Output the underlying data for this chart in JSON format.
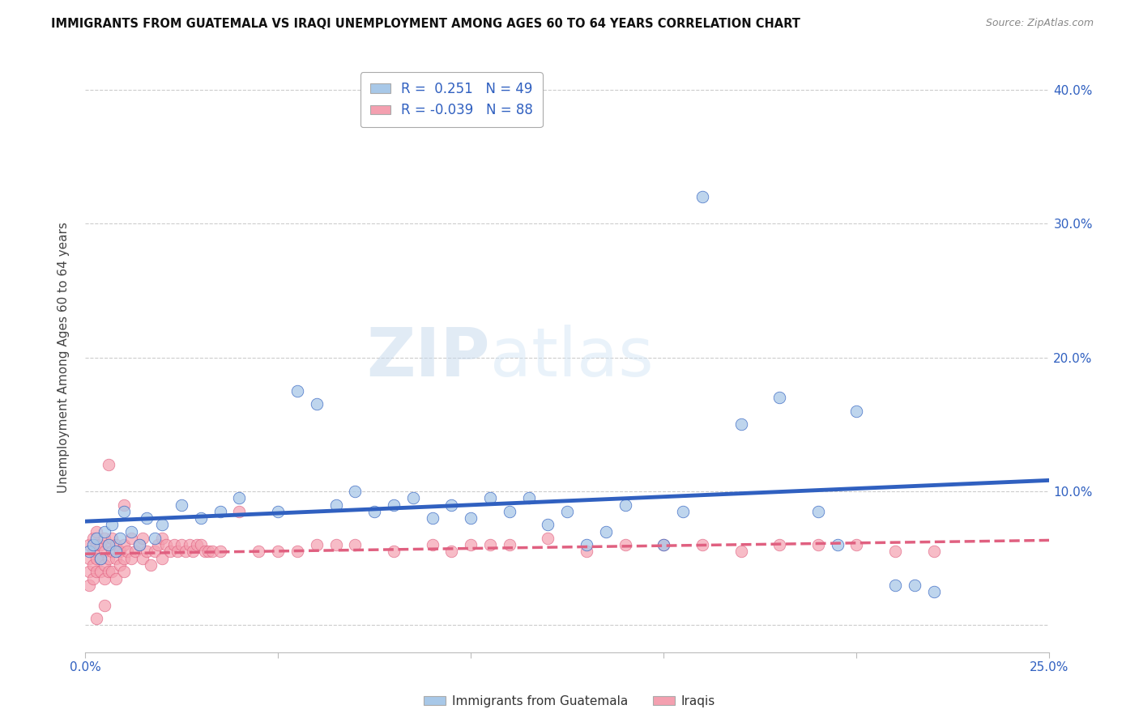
{
  "title": "IMMIGRANTS FROM GUATEMALA VS IRAQI UNEMPLOYMENT AMONG AGES 60 TO 64 YEARS CORRELATION CHART",
  "source": "Source: ZipAtlas.com",
  "ylabel": "Unemployment Among Ages 60 to 64 years",
  "xlim": [
    0.0,
    0.25
  ],
  "ylim": [
    -0.02,
    0.42
  ],
  "x_tick_pos": [
    0.0,
    0.05,
    0.1,
    0.15,
    0.2,
    0.25
  ],
  "x_tick_labels": [
    "0.0%",
    "",
    "",
    "",
    "",
    "25.0%"
  ],
  "y_tick_pos": [
    0.0,
    0.1,
    0.2,
    0.3,
    0.4
  ],
  "y_tick_labels": [
    "",
    "10.0%",
    "20.0%",
    "30.0%",
    "40.0%"
  ],
  "color_blue": "#a8c8e8",
  "color_pink": "#f4a0b0",
  "line_blue": "#3060c0",
  "line_pink": "#e06080",
  "watermark": "ZIPatlas",
  "blue_r": 0.251,
  "blue_n": 49,
  "pink_r": -0.039,
  "pink_n": 88,
  "blue_x": [
    0.001,
    0.002,
    0.003,
    0.004,
    0.005,
    0.006,
    0.007,
    0.008,
    0.009,
    0.01,
    0.012,
    0.014,
    0.016,
    0.018,
    0.02,
    0.025,
    0.03,
    0.035,
    0.04,
    0.05,
    0.055,
    0.06,
    0.065,
    0.07,
    0.075,
    0.08,
    0.085,
    0.09,
    0.095,
    0.1,
    0.105,
    0.11,
    0.115,
    0.12,
    0.125,
    0.13,
    0.135,
    0.14,
    0.15,
    0.155,
    0.16,
    0.17,
    0.18,
    0.19,
    0.195,
    0.2,
    0.21,
    0.215,
    0.22
  ],
  "blue_y": [
    0.055,
    0.06,
    0.065,
    0.05,
    0.07,
    0.06,
    0.075,
    0.055,
    0.065,
    0.085,
    0.07,
    0.06,
    0.08,
    0.065,
    0.075,
    0.09,
    0.08,
    0.085,
    0.095,
    0.085,
    0.175,
    0.165,
    0.09,
    0.1,
    0.085,
    0.09,
    0.095,
    0.08,
    0.09,
    0.08,
    0.095,
    0.085,
    0.095,
    0.075,
    0.085,
    0.06,
    0.07,
    0.09,
    0.06,
    0.085,
    0.32,
    0.15,
    0.17,
    0.085,
    0.06,
    0.16,
    0.03,
    0.03,
    0.025
  ],
  "pink_x": [
    0.001,
    0.001,
    0.001,
    0.001,
    0.002,
    0.002,
    0.002,
    0.002,
    0.003,
    0.003,
    0.003,
    0.003,
    0.004,
    0.004,
    0.004,
    0.005,
    0.005,
    0.005,
    0.005,
    0.006,
    0.006,
    0.006,
    0.007,
    0.007,
    0.007,
    0.008,
    0.008,
    0.008,
    0.009,
    0.009,
    0.01,
    0.01,
    0.01,
    0.011,
    0.012,
    0.012,
    0.013,
    0.014,
    0.015,
    0.015,
    0.016,
    0.017,
    0.018,
    0.019,
    0.02,
    0.02,
    0.021,
    0.022,
    0.023,
    0.024,
    0.025,
    0.026,
    0.027,
    0.028,
    0.029,
    0.03,
    0.031,
    0.032,
    0.033,
    0.035,
    0.04,
    0.045,
    0.05,
    0.055,
    0.06,
    0.065,
    0.07,
    0.08,
    0.09,
    0.095,
    0.1,
    0.105,
    0.11,
    0.12,
    0.13,
    0.14,
    0.15,
    0.16,
    0.17,
    0.18,
    0.19,
    0.2,
    0.21,
    0.22,
    0.003,
    0.006,
    0.01,
    0.005
  ],
  "pink_y": [
    0.06,
    0.05,
    0.04,
    0.03,
    0.065,
    0.055,
    0.045,
    0.035,
    0.07,
    0.06,
    0.05,
    0.04,
    0.06,
    0.05,
    0.04,
    0.065,
    0.055,
    0.045,
    0.035,
    0.06,
    0.05,
    0.04,
    0.065,
    0.055,
    0.04,
    0.06,
    0.05,
    0.035,
    0.055,
    0.045,
    0.06,
    0.05,
    0.04,
    0.055,
    0.065,
    0.05,
    0.055,
    0.06,
    0.065,
    0.05,
    0.055,
    0.045,
    0.055,
    0.06,
    0.065,
    0.05,
    0.06,
    0.055,
    0.06,
    0.055,
    0.06,
    0.055,
    0.06,
    0.055,
    0.06,
    0.06,
    0.055,
    0.055,
    0.055,
    0.055,
    0.085,
    0.055,
    0.055,
    0.055,
    0.06,
    0.06,
    0.06,
    0.055,
    0.06,
    0.055,
    0.06,
    0.06,
    0.06,
    0.065,
    0.055,
    0.06,
    0.06,
    0.06,
    0.055,
    0.06,
    0.06,
    0.06,
    0.055,
    0.055,
    0.005,
    0.12,
    0.09,
    0.015
  ]
}
